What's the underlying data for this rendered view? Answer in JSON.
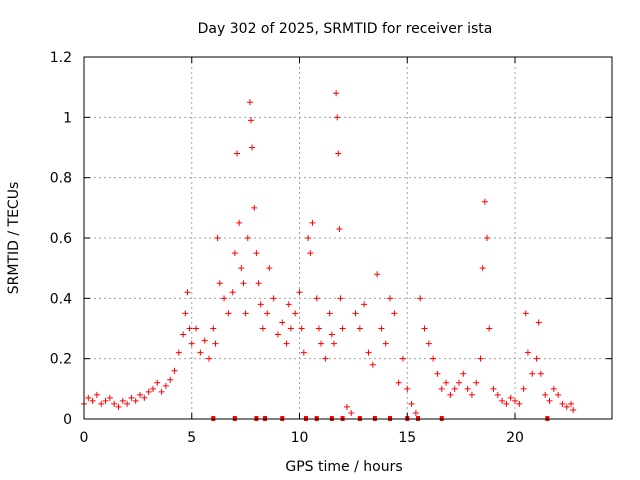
{
  "chart_data": {
    "type": "scatter",
    "title": "Day 302 of 2025, SRMTID for receiver ista",
    "xlabel": "GPS time / hours",
    "ylabel": "SRMTID / TECUs",
    "xlim": [
      0,
      24.5
    ],
    "ylim": [
      0,
      1.2
    ],
    "xticks": [
      0,
      5,
      10,
      15,
      20
    ],
    "xtick_labels": [
      "0",
      "5",
      "10",
      "15",
      "20"
    ],
    "yticks": [
      0,
      0.2,
      0.4,
      0.6,
      0.8,
      1.0,
      1.2
    ],
    "ytick_labels": [
      "0",
      "0.2",
      "0.4",
      "0.6",
      "0.8",
      "1",
      "1.2"
    ],
    "grid": true,
    "marker": "+",
    "color": "#ff0000",
    "series": [
      {
        "name": "SRMTID",
        "points": [
          [
            0.0,
            0.05
          ],
          [
            0.2,
            0.07
          ],
          [
            0.4,
            0.06
          ],
          [
            0.6,
            0.08
          ],
          [
            0.8,
            0.05
          ],
          [
            1.0,
            0.06
          ],
          [
            1.2,
            0.07
          ],
          [
            1.4,
            0.05
          ],
          [
            1.6,
            0.04
          ],
          [
            1.8,
            0.06
          ],
          [
            2.0,
            0.05
          ],
          [
            2.2,
            0.07
          ],
          [
            2.4,
            0.06
          ],
          [
            2.6,
            0.08
          ],
          [
            2.8,
            0.07
          ],
          [
            3.0,
            0.09
          ],
          [
            3.2,
            0.1
          ],
          [
            3.4,
            0.12
          ],
          [
            3.6,
            0.09
          ],
          [
            3.8,
            0.11
          ],
          [
            4.0,
            0.13
          ],
          [
            4.2,
            0.16
          ],
          [
            4.4,
            0.22
          ],
          [
            4.6,
            0.28
          ],
          [
            4.7,
            0.35
          ],
          [
            4.8,
            0.42
          ],
          [
            4.9,
            0.3
          ],
          [
            5.0,
            0.25
          ],
          [
            5.2,
            0.3
          ],
          [
            5.4,
            0.22
          ],
          [
            5.6,
            0.26
          ],
          [
            5.8,
            0.2
          ],
          [
            6.0,
            0.3
          ],
          [
            6.1,
            0.25
          ],
          [
            6.2,
            0.6
          ],
          [
            6.3,
            0.45
          ],
          [
            6.5,
            0.4
          ],
          [
            6.7,
            0.35
          ],
          [
            6.9,
            0.42
          ],
          [
            7.0,
            0.55
          ],
          [
            7.1,
            0.88
          ],
          [
            7.2,
            0.65
          ],
          [
            7.3,
            0.5
          ],
          [
            7.4,
            0.45
          ],
          [
            7.5,
            0.35
          ],
          [
            7.6,
            0.6
          ],
          [
            7.7,
            1.05
          ],
          [
            7.75,
            0.99
          ],
          [
            7.8,
            0.9
          ],
          [
            7.9,
            0.7
          ],
          [
            8.0,
            0.55
          ],
          [
            8.1,
            0.45
          ],
          [
            8.2,
            0.38
          ],
          [
            8.3,
            0.3
          ],
          [
            8.5,
            0.35
          ],
          [
            8.6,
            0.5
          ],
          [
            8.8,
            0.4
          ],
          [
            9.0,
            0.28
          ],
          [
            9.2,
            0.32
          ],
          [
            9.4,
            0.25
          ],
          [
            9.5,
            0.38
          ],
          [
            9.6,
            0.3
          ],
          [
            9.8,
            0.35
          ],
          [
            10.0,
            0.42
          ],
          [
            10.1,
            0.3
          ],
          [
            10.2,
            0.22
          ],
          [
            10.4,
            0.6
          ],
          [
            10.5,
            0.55
          ],
          [
            10.6,
            0.65
          ],
          [
            10.8,
            0.4
          ],
          [
            10.9,
            0.3
          ],
          [
            11.0,
            0.25
          ],
          [
            11.2,
            0.2
          ],
          [
            11.4,
            0.35
          ],
          [
            11.5,
            0.28
          ],
          [
            11.6,
            0.25
          ],
          [
            11.7,
            1.08
          ],
          [
            11.75,
            1.0
          ],
          [
            11.8,
            0.88
          ],
          [
            11.85,
            0.63
          ],
          [
            11.9,
            0.4
          ],
          [
            12.0,
            0.3
          ],
          [
            12.2,
            0.04
          ],
          [
            12.4,
            0.02
          ],
          [
            12.6,
            0.35
          ],
          [
            12.8,
            0.3
          ],
          [
            13.0,
            0.38
          ],
          [
            13.2,
            0.22
          ],
          [
            13.4,
            0.18
          ],
          [
            13.6,
            0.48
          ],
          [
            13.8,
            0.3
          ],
          [
            14.0,
            0.25
          ],
          [
            14.2,
            0.4
          ],
          [
            14.4,
            0.35
          ],
          [
            14.6,
            0.12
          ],
          [
            14.8,
            0.2
          ],
          [
            15.0,
            0.1
          ],
          [
            15.2,
            0.05
          ],
          [
            15.4,
            0.02
          ],
          [
            15.6,
            0.4
          ],
          [
            15.8,
            0.3
          ],
          [
            16.0,
            0.25
          ],
          [
            16.2,
            0.2
          ],
          [
            16.4,
            0.15
          ],
          [
            16.6,
            0.1
          ],
          [
            16.8,
            0.12
          ],
          [
            17.0,
            0.08
          ],
          [
            17.2,
            0.1
          ],
          [
            17.4,
            0.12
          ],
          [
            17.6,
            0.15
          ],
          [
            17.8,
            0.1
          ],
          [
            18.0,
            0.08
          ],
          [
            18.2,
            0.12
          ],
          [
            18.4,
            0.2
          ],
          [
            18.5,
            0.5
          ],
          [
            18.6,
            0.72
          ],
          [
            18.7,
            0.6
          ],
          [
            18.8,
            0.3
          ],
          [
            19.0,
            0.1
          ],
          [
            19.2,
            0.08
          ],
          [
            19.4,
            0.06
          ],
          [
            19.6,
            0.05
          ],
          [
            19.8,
            0.07
          ],
          [
            20.0,
            0.06
          ],
          [
            20.2,
            0.05
          ],
          [
            20.4,
            0.1
          ],
          [
            20.5,
            0.35
          ],
          [
            20.6,
            0.22
          ],
          [
            20.8,
            0.15
          ],
          [
            21.0,
            0.2
          ],
          [
            21.1,
            0.32
          ],
          [
            21.2,
            0.15
          ],
          [
            21.4,
            0.08
          ],
          [
            21.6,
            0.06
          ],
          [
            21.8,
            0.1
          ],
          [
            22.0,
            0.08
          ],
          [
            22.2,
            0.05
          ],
          [
            22.4,
            0.04
          ],
          [
            22.6,
            0.05
          ],
          [
            22.7,
            0.03
          ]
        ]
      }
    ],
    "baseline_points_x": [
      6.0,
      7.0,
      8.0,
      8.4,
      9.2,
      10.3,
      10.8,
      11.5,
      12.0,
      12.8,
      13.5,
      14.2,
      15.0,
      15.5,
      16.6,
      21.5
    ]
  }
}
